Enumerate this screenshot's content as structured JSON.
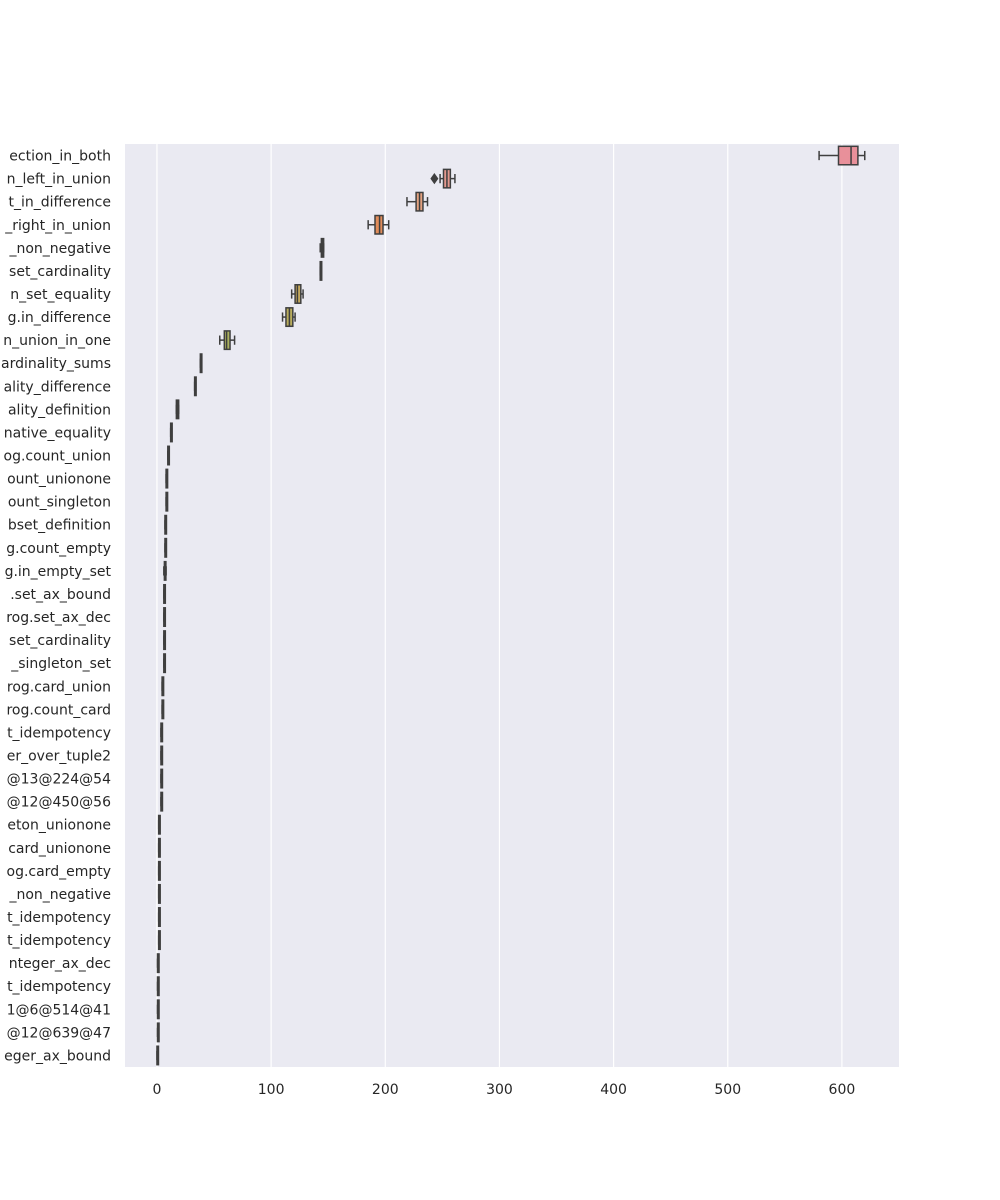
{
  "chart_data": {
    "type": "boxplot",
    "orientation": "horizontal",
    "title": "",
    "xlabel": "",
    "ylabel": "",
    "xlim": [
      -28,
      650
    ],
    "xticks": [
      0,
      100,
      200,
      300,
      400,
      500,
      600
    ],
    "grid": true,
    "categories": [
      "ection_in_both",
      "n_left_in_union",
      "t_in_difference",
      "_right_in_union",
      "_non_negative",
      "set_cardinality",
      "n_set_equality",
      "g.in_difference",
      "n_union_in_one",
      "ardinality_sums",
      "ality_difference",
      "ality_definition",
      "native_equality",
      "og.count_union",
      "ount_unionone",
      "ount_singleton",
      "bset_definition",
      "g.count_empty",
      "g.in_empty_set",
      ".set_ax_bound",
      "rog.set_ax_dec",
      "set_cardinality",
      "_singleton_set",
      "rog.card_union",
      "rog.count_card",
      "t_idempotency",
      "er_over_tuple2",
      "@13@224@54",
      "@12@450@56",
      "eton_unionone",
      "card_unionone",
      "og.card_empty",
      "_non_negative",
      "t_idempotency",
      "t_idempotency",
      "nteger_ax_dec",
      "t_idempotency",
      "1@6@514@41",
      "@12@639@47",
      "eger_ax_bound"
    ],
    "boxes": [
      {
        "whislo": 580,
        "q1": 597,
        "med": 608,
        "q3": 614,
        "whishi": 620,
        "fliers": [],
        "color": "#e8909a"
      },
      {
        "whislo": 248,
        "q1": 251,
        "med": 254,
        "q3": 257,
        "whishi": 261,
        "fliers": [
          243
        ],
        "color": "#e3988e"
      },
      {
        "whislo": 219,
        "q1": 227,
        "med": 230,
        "q3": 233,
        "whishi": 237,
        "fliers": [],
        "color": "#e3a17f"
      },
      {
        "whislo": 185,
        "q1": 191,
        "med": 195,
        "q3": 198,
        "whishi": 203,
        "fliers": [],
        "color": "#e08c5a"
      },
      {
        "whislo": 143,
        "q1": 144,
        "med": 145,
        "q3": 146,
        "whishi": 146,
        "fliers": [],
        "color": "#d9a365"
      },
      {
        "whislo": 143,
        "q1": 143,
        "med": 143.5,
        "q3": 144,
        "whishi": 144,
        "fliers": [],
        "color": "#c9a868"
      },
      {
        "whislo": 118,
        "q1": 121,
        "med": 123,
        "q3": 126,
        "whishi": 128,
        "fliers": [],
        "color": "#c4a85c"
      },
      {
        "whislo": 110,
        "q1": 113,
        "med": 116,
        "q3": 119,
        "whishi": 121,
        "fliers": [],
        "color": "#b8ac5c"
      },
      {
        "whislo": 55,
        "q1": 59,
        "med": 61,
        "q3": 64,
        "whishi": 68,
        "fliers": [],
        "color": "#aab05e"
      },
      {
        "whislo": 38,
        "q1": 38,
        "med": 38.5,
        "q3": 39,
        "whishi": 39,
        "fliers": [],
        "color": "#9fb060"
      },
      {
        "whislo": 33,
        "q1": 33,
        "med": 33.5,
        "q3": 34,
        "whishi": 34,
        "fliers": [],
        "color": "#93b264"
      },
      {
        "whislo": 17,
        "q1": 17,
        "med": 18,
        "q3": 19,
        "whishi": 19,
        "fliers": [],
        "color": "#86b46a"
      },
      {
        "whislo": 12,
        "q1": 12,
        "med": 12.5,
        "q3": 13,
        "whishi": 13,
        "fliers": [],
        "color": "#7cb570"
      },
      {
        "whislo": 9.5,
        "q1": 9.5,
        "med": 10,
        "q3": 10.5,
        "whishi": 10.5,
        "fliers": [],
        "color": "#6fb676"
      },
      {
        "whislo": 8,
        "q1": 8,
        "med": 8.5,
        "q3": 9,
        "whishi": 9,
        "fliers": [],
        "color": "#66b67f"
      },
      {
        "whislo": 8,
        "q1": 8,
        "med": 8.5,
        "q3": 9,
        "whishi": 9,
        "fliers": [],
        "color": "#62b58a"
      },
      {
        "whislo": 7,
        "q1": 7,
        "med": 7.5,
        "q3": 8,
        "whishi": 8,
        "fliers": [],
        "color": "#5fb495"
      },
      {
        "whislo": 7,
        "q1": 7,
        "med": 7.5,
        "q3": 8,
        "whishi": 8,
        "fliers": [],
        "color": "#5db3a0"
      },
      {
        "whislo": 6,
        "q1": 6.5,
        "med": 7,
        "q3": 7.5,
        "whishi": 8,
        "fliers": [],
        "color": "#5cb1aa"
      },
      {
        "whislo": 6,
        "q1": 6,
        "med": 6.5,
        "q3": 7,
        "whishi": 7,
        "fliers": [],
        "color": "#5eaeb3"
      },
      {
        "whislo": 6,
        "q1": 6,
        "med": 6.5,
        "q3": 7,
        "whishi": 7,
        "fliers": [],
        "color": "#60abbb"
      },
      {
        "whislo": 6,
        "q1": 6,
        "med": 6.5,
        "q3": 7,
        "whishi": 7,
        "fliers": [],
        "color": "#66a7c3"
      },
      {
        "whislo": 6,
        "q1": 6,
        "med": 6.5,
        "q3": 7,
        "whishi": 7,
        "fliers": [],
        "color": "#6fa3ca"
      },
      {
        "whislo": 4.5,
        "q1": 4.5,
        "med": 5,
        "q3": 5.5,
        "whishi": 5.5,
        "fliers": [],
        "color": "#7a9ed1"
      },
      {
        "whislo": 4.5,
        "q1": 4.5,
        "med": 5,
        "q3": 5.5,
        "whishi": 5.5,
        "fliers": [],
        "color": "#8699d6"
      },
      {
        "whislo": 3.5,
        "q1": 3.5,
        "med": 4,
        "q3": 4.5,
        "whishi": 4.5,
        "fliers": [],
        "color": "#9394da"
      },
      {
        "whislo": 3.5,
        "q1": 3.5,
        "med": 4,
        "q3": 4.5,
        "whishi": 4.5,
        "fliers": [],
        "color": "#a08fdc"
      },
      {
        "whislo": 3.5,
        "q1": 3.5,
        "med": 4,
        "q3": 4.5,
        "whishi": 4.5,
        "fliers": [],
        "color": "#ad8ada"
      },
      {
        "whislo": 3.5,
        "q1": 3.5,
        "med": 4,
        "q3": 4.5,
        "whishi": 4.5,
        "fliers": [],
        "color": "#b987d6"
      },
      {
        "whislo": 1.5,
        "q1": 1.5,
        "med": 2,
        "q3": 2.5,
        "whishi": 2.5,
        "fliers": [],
        "color": "#c485d0"
      },
      {
        "whislo": 1.5,
        "q1": 1.5,
        "med": 2,
        "q3": 2.5,
        "whishi": 2.5,
        "fliers": [],
        "color": "#ce84c8"
      },
      {
        "whislo": 1.5,
        "q1": 1.5,
        "med": 2,
        "q3": 2.5,
        "whishi": 2.5,
        "fliers": [],
        "color": "#d685bf"
      },
      {
        "whislo": 1.5,
        "q1": 1.5,
        "med": 2,
        "q3": 2.5,
        "whishi": 2.5,
        "fliers": [],
        "color": "#dc87b6"
      },
      {
        "whislo": 1.5,
        "q1": 1.5,
        "med": 2,
        "q3": 2.5,
        "whishi": 2.5,
        "fliers": [],
        "color": "#e08aad"
      },
      {
        "whislo": 1.5,
        "q1": 1.5,
        "med": 2,
        "q3": 2.5,
        "whishi": 2.5,
        "fliers": [],
        "color": "#e38da5"
      },
      {
        "whislo": 0.5,
        "q1": 0.5,
        "med": 1,
        "q3": 1.5,
        "whishi": 1.5,
        "fliers": [],
        "color": "#e5909d"
      },
      {
        "whislo": 0.5,
        "q1": 0.5,
        "med": 1,
        "q3": 1.5,
        "whishi": 1.5,
        "fliers": [],
        "color": "#e69296"
      },
      {
        "whislo": 0.5,
        "q1": 0.5,
        "med": 1,
        "q3": 1.5,
        "whishi": 1.5,
        "fliers": [],
        "color": "#e7948f"
      },
      {
        "whislo": 0.5,
        "q1": 0.5,
        "med": 1,
        "q3": 1.5,
        "whishi": 1.5,
        "fliers": [],
        "color": "#e89589"
      },
      {
        "whislo": 0,
        "q1": 0,
        "med": 0.5,
        "q3": 1,
        "whishi": 1,
        "fliers": [],
        "color": "#e89684"
      }
    ],
    "colors": {
      "plot_background": "#eaeaf2",
      "grid": "#ffffff",
      "line": "#3f3f3f",
      "text": "#262626"
    }
  }
}
